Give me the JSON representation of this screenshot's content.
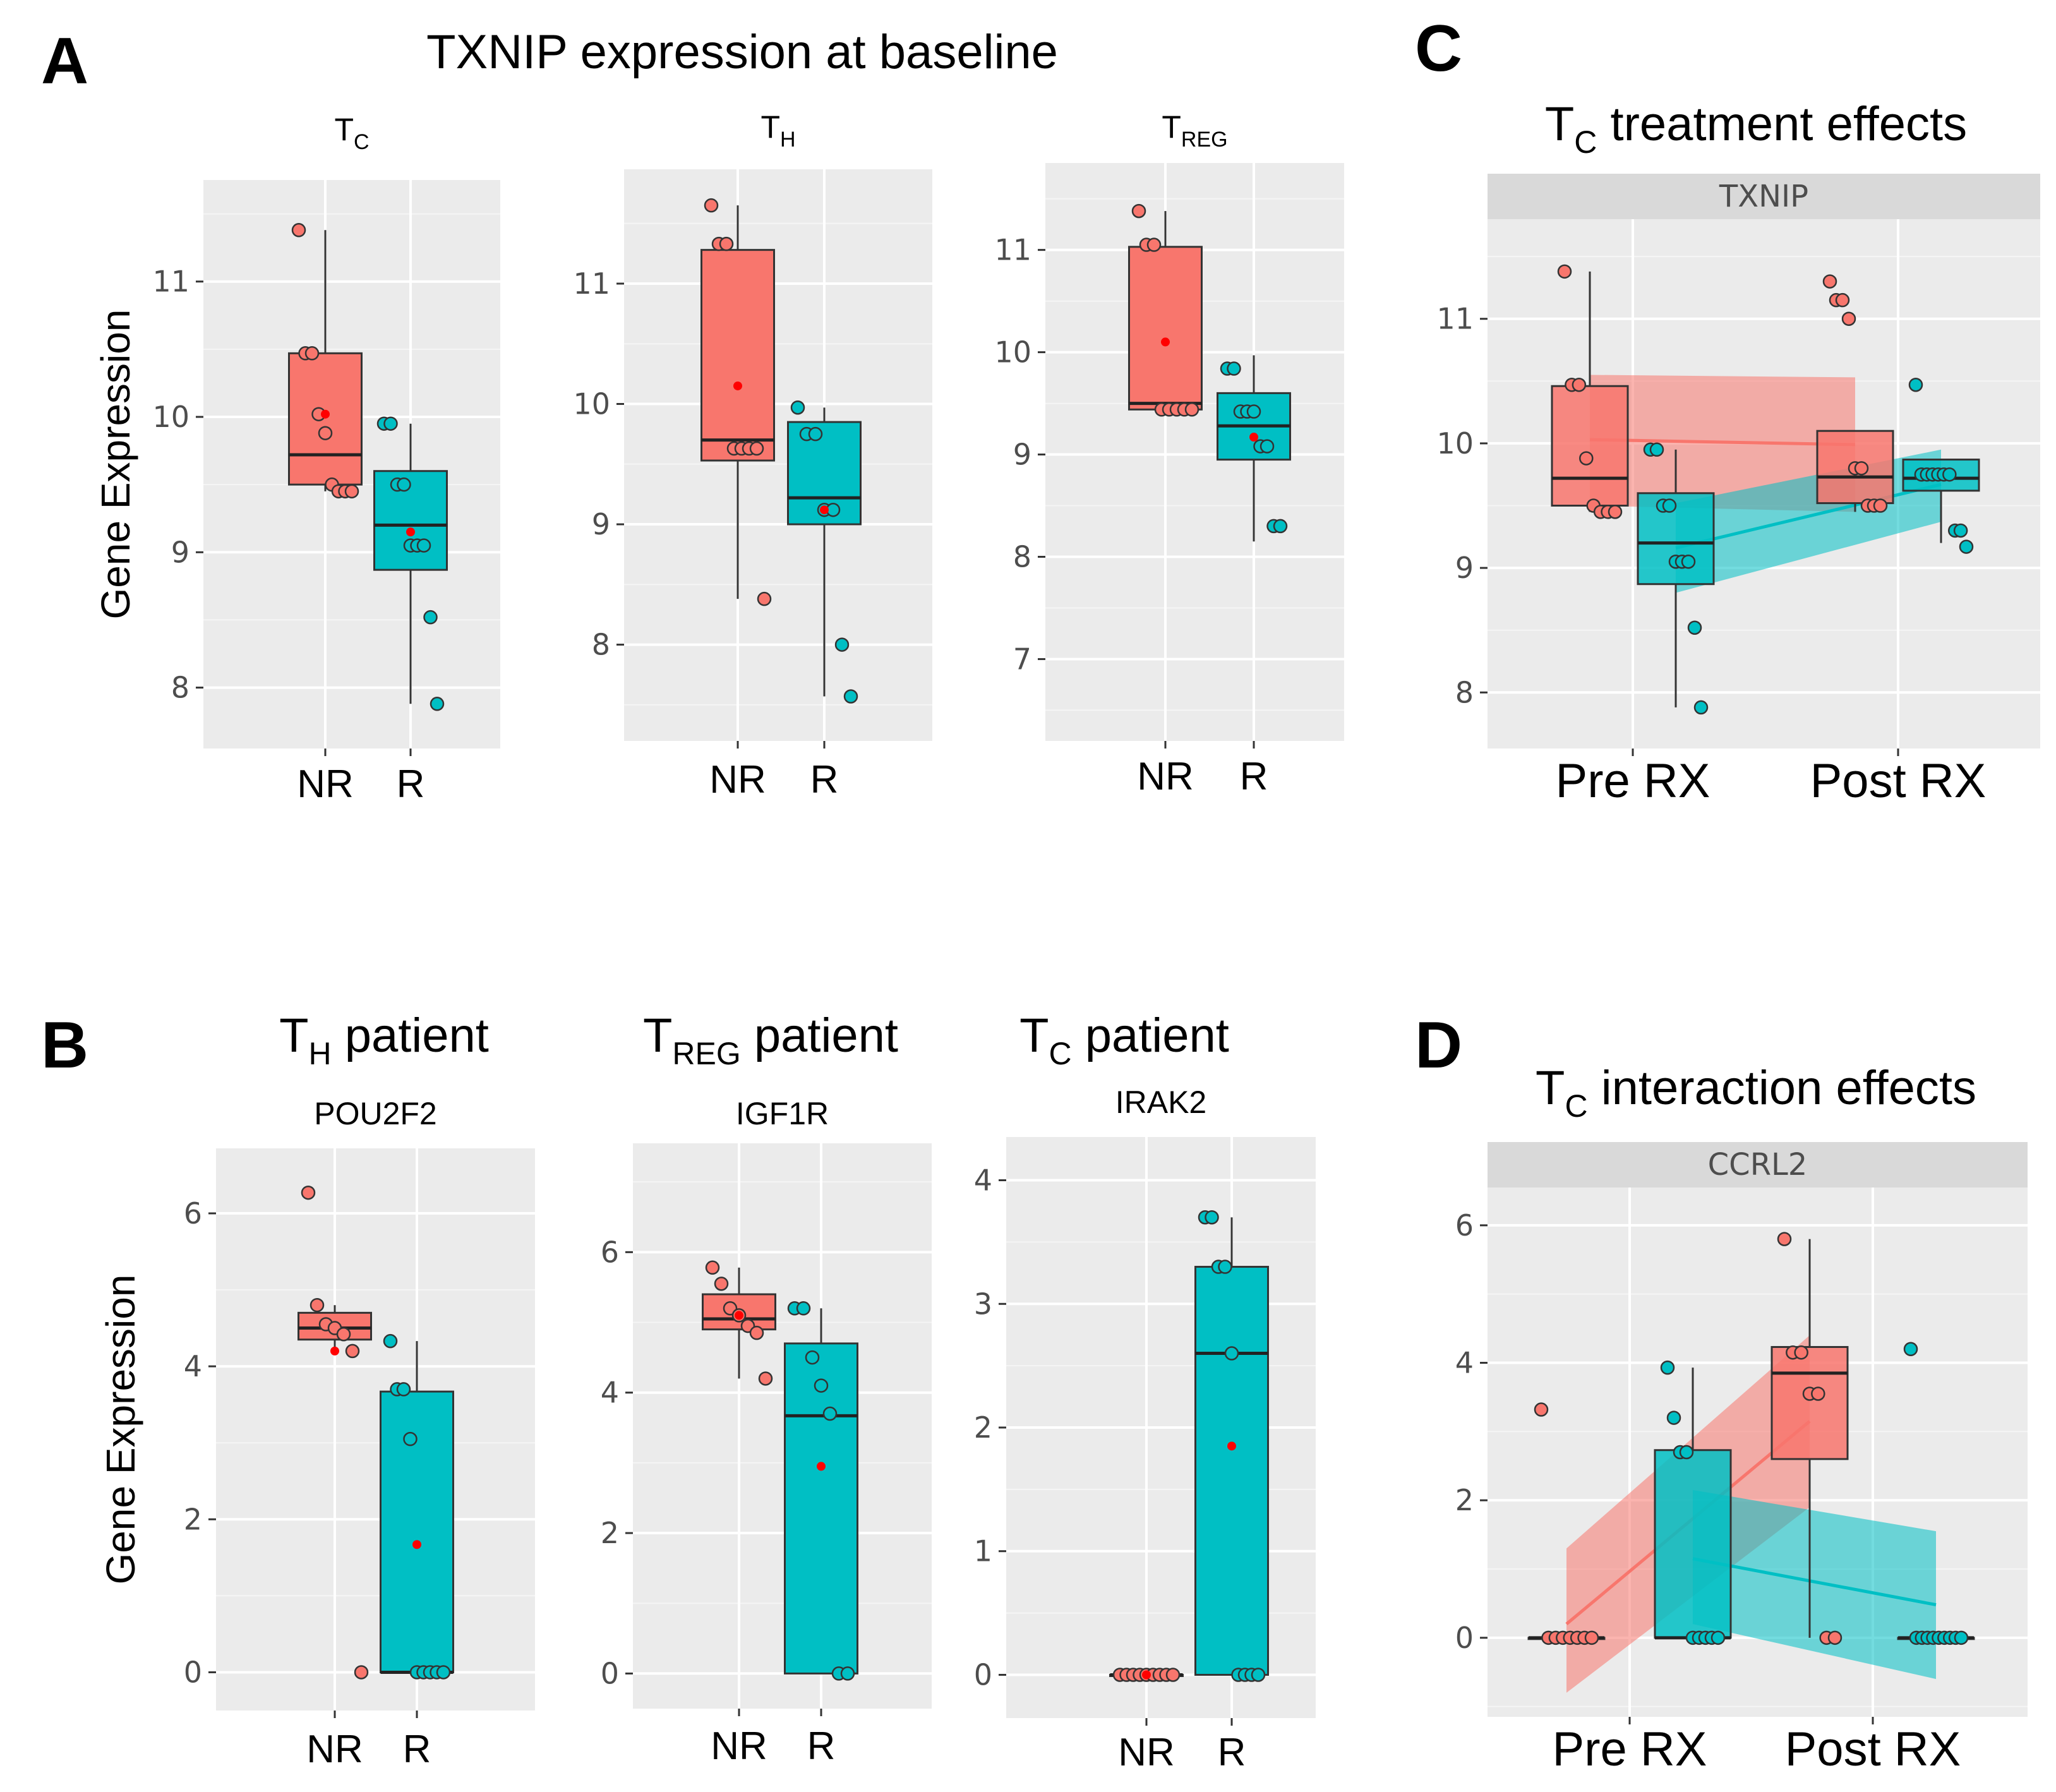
{
  "panel_letters": {
    "A": "A",
    "B": "B",
    "C": "C",
    "D": "D"
  },
  "titles": {
    "A_main": "TXNIP expression at baseline",
    "B_th_main": "T",
    "B_th_sub": "H",
    "B_th_rest": " patient",
    "B_treg_main": "T",
    "B_treg_sub": "REG",
    "B_treg_rest": " patient",
    "B_tc_main": "T",
    "B_tc_sub": "C",
    "B_tc_rest": " patient",
    "C_main": "T",
    "C_sub": "C",
    "C_rest": " treatment effects",
    "D_main": "T",
    "D_sub": "C",
    "D_rest": " interaction effects"
  },
  "colors": {
    "nr": "#F8766D",
    "r": "#00BFC4",
    "panel_bg": "#EBEBEB",
    "strip": "#D9D9D9",
    "mean": "#FF0000"
  },
  "chart_data": [
    {
      "id": "A_tc",
      "type": "box",
      "title_main": "T",
      "title_sub": "C",
      "ylabel": "Gene Expression",
      "categories": [
        "NR",
        "R"
      ],
      "ylim": [
        7.55,
        11.75
      ],
      "ticks": [
        8,
        9,
        10,
        11
      ],
      "boxes": [
        {
          "q1": 9.5,
          "median": 9.72,
          "q3": 10.47,
          "lo": 9.45,
          "hi": 11.38,
          "mean": 10.02
        },
        {
          "q1": 8.87,
          "median": 9.2,
          "q3": 9.6,
          "lo": 7.88,
          "hi": 9.95,
          "mean": 9.15
        }
      ],
      "points": [
        [
          11.38,
          10.47,
          10.47,
          10.02,
          9.88,
          9.5,
          9.45,
          9.45,
          9.45
        ],
        [
          9.95,
          9.95,
          9.5,
          9.5,
          9.05,
          9.05,
          9.05,
          8.52,
          7.88
        ]
      ]
    },
    {
      "id": "A_th",
      "type": "box",
      "title_main": "T",
      "title_sub": "H",
      "ylabel": "",
      "categories": [
        "NR",
        "R"
      ],
      "ylim": [
        7.2,
        11.95
      ],
      "ticks": [
        8,
        9,
        10,
        11
      ],
      "boxes": [
        {
          "q1": 9.53,
          "median": 9.7,
          "q3": 11.28,
          "lo": 8.38,
          "hi": 11.65,
          "mean": 10.15
        },
        {
          "q1": 9.0,
          "median": 9.22,
          "q3": 9.85,
          "lo": 7.57,
          "hi": 9.97,
          "mean": 9.12
        }
      ],
      "points": [
        [
          11.65,
          11.33,
          11.33,
          9.63,
          9.63,
          9.63,
          9.63,
          8.38
        ],
        [
          9.97,
          9.75,
          9.75,
          9.12,
          9.12,
          8.0,
          7.57
        ]
      ]
    },
    {
      "id": "A_treg",
      "type": "box",
      "title_main": "T",
      "title_sub": "REG",
      "ylabel": "",
      "categories": [
        "NR",
        "R"
      ],
      "ylim": [
        6.2,
        11.85
      ],
      "ticks": [
        7,
        8,
        9,
        10,
        11
      ],
      "boxes": [
        {
          "q1": 9.44,
          "median": 9.5,
          "q3": 11.03,
          "lo": 9.44,
          "hi": 11.38,
          "mean": 10.1
        },
        {
          "q1": 8.95,
          "median": 9.28,
          "q3": 9.6,
          "lo": 8.15,
          "hi": 9.97,
          "mean": 9.17
        }
      ],
      "points": [
        [
          11.38,
          11.05,
          11.05,
          9.44,
          9.44,
          9.44,
          9.44,
          9.44
        ],
        [
          9.84,
          9.84,
          9.42,
          9.42,
          9.42,
          9.08,
          9.08,
          8.3,
          8.3
        ]
      ]
    },
    {
      "id": "B_th",
      "type": "box",
      "title_main": "POU2F2",
      "title_sub": "",
      "ylabel": "Gene Expression",
      "categories": [
        "NR",
        "R"
      ],
      "ylim": [
        -0.5,
        6.85
      ],
      "ticks": [
        0,
        2,
        4,
        6
      ],
      "boxes": [
        {
          "q1": 4.35,
          "median": 4.5,
          "q3": 4.7,
          "lo": 4.2,
          "hi": 4.8,
          "mean": 4.2
        },
        {
          "q1": 0,
          "median": 0,
          "q3": 3.67,
          "lo": 0,
          "hi": 4.33,
          "mean": 1.67
        }
      ],
      "points": [
        [
          6.27,
          4.8,
          4.55,
          4.5,
          4.42,
          4.2,
          0.0
        ],
        [
          4.33,
          3.7,
          3.7,
          3.05,
          0,
          0,
          0,
          0,
          0
        ]
      ]
    },
    {
      "id": "B_treg",
      "type": "box",
      "title_main": "IGF1R",
      "title_sub": "",
      "ylabel": "",
      "categories": [
        "NR",
        "R"
      ],
      "ylim": [
        -0.5,
        7.55
      ],
      "ticks": [
        0,
        2,
        4,
        6
      ],
      "boxes": [
        {
          "q1": 4.9,
          "median": 5.05,
          "q3": 5.4,
          "lo": 4.2,
          "hi": 5.78,
          "mean": 5.1
        },
        {
          "q1": 0,
          "median": 3.67,
          "q3": 4.7,
          "lo": 0,
          "hi": 5.2,
          "mean": 2.95
        }
      ],
      "points": [
        [
          5.78,
          5.55,
          5.2,
          5.1,
          4.95,
          4.85,
          4.2
        ],
        [
          5.2,
          5.2,
          4.5,
          4.1,
          3.7,
          0,
          0
        ]
      ]
    },
    {
      "id": "B_tc",
      "type": "box",
      "title_main": "IRAK2",
      "title_sub": "",
      "ylabel": "",
      "categories": [
        "NR",
        "R"
      ],
      "ylim": [
        -0.35,
        4.35
      ],
      "ticks": [
        0,
        1,
        2,
        3,
        4
      ],
      "boxes": [
        {
          "q1": 0,
          "median": 0,
          "q3": 0,
          "lo": 0,
          "hi": 0,
          "mean": 0
        },
        {
          "q1": 0,
          "median": 2.6,
          "q3": 3.3,
          "lo": 0,
          "hi": 3.7,
          "mean": 1.85
        }
      ],
      "points": [
        [
          0,
          0,
          0,
          0,
          0,
          0,
          0,
          0,
          0
        ],
        [
          3.7,
          3.7,
          3.3,
          3.3,
          2.6,
          0,
          0,
          0,
          0
        ]
      ]
    },
    {
      "id": "C_tc",
      "type": "box_interaction",
      "strip": "TXNIP",
      "categories": [
        "Pre RX",
        "Post RX"
      ],
      "ylim": [
        7.55,
        11.8
      ],
      "ticks": [
        8,
        9,
        10,
        11
      ],
      "boxes": [
        {
          "group": 0,
          "series": "NR",
          "q1": 9.5,
          "median": 9.72,
          "q3": 10.46,
          "lo": 9.45,
          "hi": 11.38
        },
        {
          "group": 0,
          "series": "R",
          "q1": 8.87,
          "median": 9.2,
          "q3": 9.6,
          "lo": 7.88,
          "hi": 9.95
        },
        {
          "group": 1,
          "series": "NR",
          "q1": 9.52,
          "median": 9.73,
          "q3": 10.1,
          "lo": 9.45,
          "hi": 10.1
        },
        {
          "group": 1,
          "series": "R",
          "q1": 9.62,
          "median": 9.72,
          "q3": 9.87,
          "lo": 9.2,
          "hi": 9.87
        }
      ],
      "fits": [
        {
          "series": "NR",
          "y0": 10.03,
          "y1": 9.99,
          "lo0": 9.5,
          "hi0": 10.55,
          "lo1": 9.45,
          "hi1": 10.53
        },
        {
          "series": "R",
          "y0": 9.16,
          "y1": 9.67,
          "lo0": 8.8,
          "hi0": 9.52,
          "lo1": 9.37,
          "hi1": 9.95
        }
      ],
      "points": [
        {
          "group": 0,
          "series": "NR",
          "values": [
            11.38,
            10.47,
            10.47,
            9.88,
            9.5,
            9.45,
            9.45,
            9.45
          ]
        },
        {
          "group": 0,
          "series": "R",
          "values": [
            9.95,
            9.95,
            9.5,
            9.5,
            9.05,
            9.05,
            9.05,
            8.52,
            7.88
          ]
        },
        {
          "group": 1,
          "series": "NR",
          "values": [
            11.3,
            11.15,
            11.15,
            11.0,
            9.8,
            9.8,
            9.5,
            9.5,
            9.5
          ]
        },
        {
          "group": 1,
          "series": "R",
          "values": [
            10.47,
            9.75,
            9.75,
            9.75,
            9.75,
            9.75,
            9.75,
            9.3,
            9.3,
            9.17
          ]
        }
      ]
    },
    {
      "id": "D_tc",
      "type": "box_interaction",
      "strip": "CCRL2",
      "categories": [
        "Pre RX",
        "Post RX"
      ],
      "ylim": [
        -1.15,
        6.55
      ],
      "ticks": [
        0,
        2,
        4,
        6
      ],
      "boxes": [
        {
          "group": 0,
          "series": "NR",
          "q1": 0,
          "median": 0,
          "q3": 0,
          "lo": 0,
          "hi": 0
        },
        {
          "group": 0,
          "series": "R",
          "q1": 0,
          "median": 0,
          "q3": 2.73,
          "lo": 0,
          "hi": 3.93
        },
        {
          "group": 1,
          "series": "NR",
          "q1": 2.6,
          "median": 3.85,
          "q3": 4.23,
          "lo": 0,
          "hi": 5.8
        },
        {
          "group": 1,
          "series": "R",
          "q1": 0,
          "median": 0,
          "q3": 0,
          "lo": 0,
          "hi": 0
        }
      ],
      "fits": [
        {
          "series": "NR",
          "y0": 0.2,
          "y1": 3.15,
          "lo0": -0.8,
          "hi0": 1.3,
          "lo1": 1.9,
          "hi1": 4.4
        },
        {
          "series": "R",
          "y0": 1.15,
          "y1": 0.48,
          "lo0": 0.2,
          "hi0": 2.15,
          "lo1": -0.6,
          "hi1": 1.55
        }
      ],
      "points": [
        {
          "group": 0,
          "series": "NR",
          "values": [
            3.32,
            0,
            0,
            0,
            0,
            0,
            0,
            0
          ]
        },
        {
          "group": 0,
          "series": "R",
          "values": [
            3.93,
            3.2,
            2.7,
            2.7,
            0,
            0,
            0,
            0,
            0
          ]
        },
        {
          "group": 1,
          "series": "NR",
          "values": [
            5.8,
            4.15,
            4.15,
            3.55,
            3.55,
            0,
            0
          ]
        },
        {
          "group": 1,
          "series": "R",
          "values": [
            4.2,
            0,
            0,
            0,
            0,
            0,
            0,
            0,
            0,
            0
          ]
        }
      ]
    }
  ]
}
